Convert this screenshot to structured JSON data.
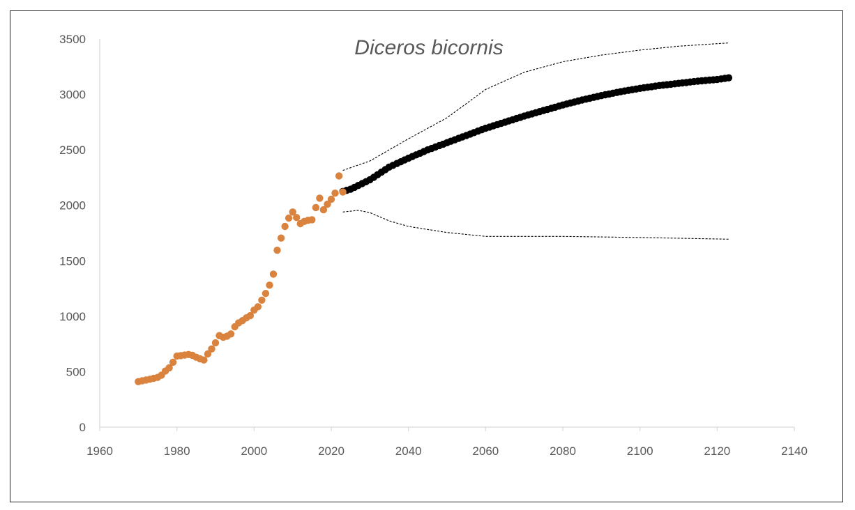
{
  "chart_data": {
    "type": "scatter",
    "title": "Diceros bicornis",
    "xlabel": "",
    "ylabel": "",
    "xlim": [
      1960,
      2140
    ],
    "ylim": [
      0,
      3500
    ],
    "x_ticks": [
      1960,
      1980,
      2000,
      2020,
      2040,
      2060,
      2080,
      2100,
      2120,
      2140
    ],
    "y_ticks": [
      0,
      500,
      1000,
      1500,
      2000,
      2500,
      3000,
      3500
    ],
    "grid": false,
    "legend": "none",
    "colors": {
      "observed": "#D9833F",
      "projected": "#000000",
      "bounds": "#000000",
      "axis": "#D9D9D9",
      "text": "#595959"
    },
    "series": [
      {
        "kind": "observed",
        "points": [
          [
            1970,
            410
          ],
          [
            1971,
            418
          ],
          [
            1972,
            425
          ],
          [
            1973,
            432
          ],
          [
            1974,
            440
          ],
          [
            1975,
            448
          ],
          [
            1976,
            468
          ],
          [
            1977,
            505
          ],
          [
            1978,
            535
          ],
          [
            1979,
            585
          ],
          [
            1980,
            640
          ],
          [
            1981,
            645
          ],
          [
            1982,
            650
          ],
          [
            1983,
            655
          ],
          [
            1984,
            648
          ],
          [
            1985,
            630
          ],
          [
            1986,
            615
          ],
          [
            1987,
            605
          ],
          [
            1988,
            660
          ],
          [
            1989,
            705
          ],
          [
            1990,
            760
          ],
          [
            1991,
            825
          ],
          [
            1992,
            810
          ],
          [
            1993,
            820
          ],
          [
            1994,
            840
          ],
          [
            1995,
            905
          ],
          [
            1996,
            940
          ],
          [
            1997,
            960
          ],
          [
            1998,
            985
          ],
          [
            1999,
            1005
          ],
          [
            2000,
            1055
          ],
          [
            2001,
            1085
          ],
          [
            2002,
            1145
          ],
          [
            2003,
            1205
          ],
          [
            2004,
            1280
          ],
          [
            2005,
            1380
          ],
          [
            2006,
            1595
          ],
          [
            2007,
            1705
          ],
          [
            2008,
            1810
          ],
          [
            2009,
            1885
          ],
          [
            2010,
            1940
          ],
          [
            2011,
            1890
          ],
          [
            2012,
            1835
          ],
          [
            2013,
            1855
          ],
          [
            2014,
            1865
          ],
          [
            2015,
            1870
          ],
          [
            2016,
            1980
          ],
          [
            2017,
            2065
          ],
          [
            2018,
            1960
          ],
          [
            2019,
            2010
          ],
          [
            2020,
            2055
          ],
          [
            2021,
            2110
          ],
          [
            2022,
            2265
          ],
          [
            2023,
            2120
          ]
        ]
      },
      {
        "kind": "projected",
        "points": [
          [
            2023,
            2125
          ],
          [
            2025,
            2145
          ],
          [
            2030,
            2230
          ],
          [
            2035,
            2345
          ],
          [
            2040,
            2425
          ],
          [
            2045,
            2500
          ],
          [
            2050,
            2565
          ],
          [
            2055,
            2630
          ],
          [
            2060,
            2695
          ],
          [
            2065,
            2750
          ],
          [
            2070,
            2805
          ],
          [
            2075,
            2855
          ],
          [
            2080,
            2905
          ],
          [
            2085,
            2950
          ],
          [
            2090,
            2990
          ],
          [
            2095,
            3025
          ],
          [
            2100,
            3055
          ],
          [
            2105,
            3080
          ],
          [
            2110,
            3100
          ],
          [
            2115,
            3120
          ],
          [
            2120,
            3135
          ],
          [
            2123,
            3150
          ]
        ]
      },
      {
        "kind": "upper-bound",
        "points": [
          [
            2023,
            2315
          ],
          [
            2030,
            2400
          ],
          [
            2040,
            2600
          ],
          [
            2050,
            2790
          ],
          [
            2060,
            3045
          ],
          [
            2070,
            3200
          ],
          [
            2080,
            3295
          ],
          [
            2090,
            3355
          ],
          [
            2100,
            3400
          ],
          [
            2110,
            3435
          ],
          [
            2123,
            3465
          ]
        ]
      },
      {
        "kind": "lower-bound",
        "points": [
          [
            2023,
            1940
          ],
          [
            2027,
            1955
          ],
          [
            2030,
            1935
          ],
          [
            2035,
            1860
          ],
          [
            2040,
            1810
          ],
          [
            2050,
            1755
          ],
          [
            2060,
            1720
          ],
          [
            2080,
            1720
          ],
          [
            2100,
            1710
          ],
          [
            2123,
            1695
          ]
        ]
      }
    ]
  }
}
